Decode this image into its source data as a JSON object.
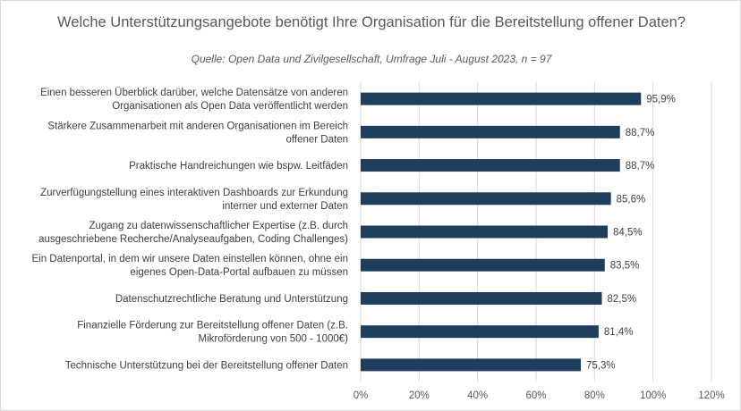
{
  "chart_data": {
    "type": "bar",
    "orientation": "horizontal",
    "title": "Welche Unterstützungsangebote benötigt Ihre Organisation für die Bereitstellung offener Daten?",
    "subtitle": "Quelle: Open Data und Zivilgesellschaft, Umfrage Juli - August 2023, n = 97",
    "categories": [
      [
        "Einen besseren Überblick darüber, welche Datensätze von anderen",
        "Organisationen als Open Data veröffentlicht werden"
      ],
      [
        "Stärkere Zusammenarbeit mit anderen Organisationen im Bereich",
        "offener Daten"
      ],
      [
        "Praktische Handreichungen wie bspw. Leitfäden"
      ],
      [
        "Zurverfügungstellung eines interaktiven Dashboards zur Erkundung",
        "interner und externer Daten"
      ],
      [
        "Zugang zu datenwissenschaftlicher Expertise (z.B. durch",
        "ausgeschriebene Recherche/Analyseaufgaben, Coding Challenges)"
      ],
      [
        "Ein Datenportal, in dem wir unsere Daten einstellen können, ohne ein",
        "eigenes Open-Data-Portal aufbauen zu müssen"
      ],
      [
        "Datenschutzrechtliche Beratung und Unterstützung"
      ],
      [
        "Finanzielle Förderung zur Bereitstellung offener Daten (z.B.",
        "Mikroförderung von 500 - 1000€)"
      ],
      [
        "Technische Unterstützung bei der Bereitstellung offener Daten"
      ]
    ],
    "values": [
      95.9,
      88.7,
      88.7,
      85.6,
      84.5,
      83.5,
      82.5,
      81.4,
      75.3
    ],
    "value_labels": [
      "95,9%",
      "88,7%",
      "88,7%",
      "85,6%",
      "84,5%",
      "83,5%",
      "82,5%",
      "81,4%",
      "75,3%"
    ],
    "xlim": [
      0,
      120
    ],
    "xticks": [
      0,
      20,
      40,
      60,
      80,
      100,
      120
    ],
    "xtick_labels": [
      "0%",
      "20%",
      "40%",
      "60%",
      "80%",
      "100%",
      "120%"
    ],
    "grid": "vertical",
    "bar_color": "#1f3d5c"
  }
}
